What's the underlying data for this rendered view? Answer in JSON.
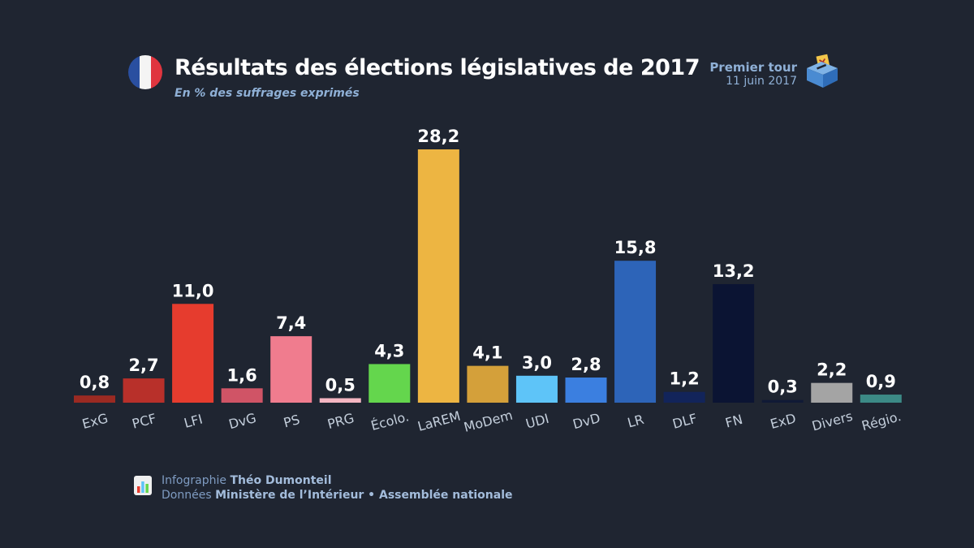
{
  "header": {
    "title": "Résultats des élections législatives de 2017",
    "subtitle": "En % des suffrages exprimés",
    "round_label": "Premier tour",
    "round_date": "11 juin 2017"
  },
  "credits": {
    "infographic_prefix": "Infographie",
    "infographic_author": "Théo Dumonteil",
    "data_prefix": "Données",
    "data_source": "Ministère de l’Intérieur • Assemblée nationale"
  },
  "icons": {
    "flag": "france-flag-icon",
    "ballot": "ballot-box-icon",
    "credits": "bar-chart-icon"
  },
  "chart_data": {
    "type": "bar",
    "title": "Résultats des élections législatives de 2017",
    "ylabel": "% des suffrages exprimés",
    "ylim": [
      0,
      30
    ],
    "grid": false,
    "categories": [
      "ExG",
      "PCF",
      "LFI",
      "DvG",
      "PS",
      "PRG",
      "Écolo.",
      "LaREM",
      "MoDem",
      "UDI",
      "DvD",
      "LR",
      "DLF",
      "FN",
      "ExD",
      "Divers",
      "Régio."
    ],
    "values": [
      0.8,
      2.7,
      11.0,
      1.6,
      7.4,
      0.5,
      4.3,
      28.2,
      4.1,
      3.0,
      2.8,
      15.8,
      1.2,
      13.2,
      0.3,
      2.2,
      0.9
    ],
    "value_labels": [
      "0,8",
      "2,7",
      "11,0",
      "1,6",
      "7,4",
      "0,5",
      "4,3",
      "28,2",
      "4,1",
      "3,0",
      "2,8",
      "15,8",
      "1,2",
      "13,2",
      "0,3",
      "2,2",
      "0,9"
    ],
    "colors": [
      "#9b2a22",
      "#b8302a",
      "#e63c2e",
      "#d05466",
      "#f07c8e",
      "#f4b6c2",
      "#64d64d",
      "#edb542",
      "#d4a03a",
      "#5ec4f8",
      "#3b7fe0",
      "#2d64b8",
      "#12245a",
      "#0b1433",
      "#101a36",
      "#a4a4a4",
      "#3c8a86"
    ]
  }
}
